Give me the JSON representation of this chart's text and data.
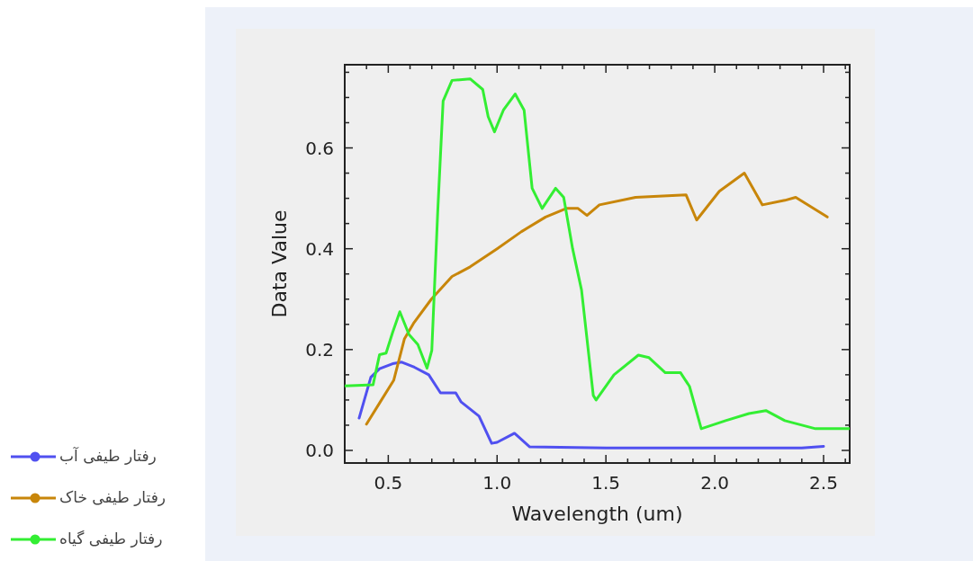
{
  "chart_data": {
    "type": "line",
    "xlabel": "Wavelength (um)",
    "ylabel": "Data Value",
    "xlim": [
      0.3,
      2.62
    ],
    "ylim": [
      -0.025,
      0.765
    ],
    "xticks": [
      {
        "value": 0.4,
        "label": null
      },
      0.5,
      {
        "value": 0.6,
        "label": null
      },
      {
        "value": 0.7,
        "label": null
      },
      {
        "value": 0.8,
        "label": null
      },
      {
        "value": 0.9,
        "label": null
      },
      {
        "value": 1.0,
        "label": "1.0"
      },
      {
        "value": 1.1,
        "label": null
      },
      {
        "value": 1.2,
        "label": null
      },
      {
        "value": 1.3,
        "label": null
      },
      {
        "value": 1.4,
        "label": null
      },
      1.5,
      {
        "value": 1.6,
        "label": null
      },
      {
        "value": 1.7,
        "label": null
      },
      {
        "value": 1.8,
        "label": null
      },
      {
        "value": 1.9,
        "label": null
      },
      {
        "value": 2.0,
        "label": "2.0"
      },
      {
        "value": 2.1,
        "label": null
      },
      {
        "value": 2.2,
        "label": null
      },
      {
        "value": 2.3,
        "label": null
      },
      {
        "value": 2.4,
        "label": null
      },
      2.5,
      {
        "value": 2.6,
        "label": null
      }
    ],
    "yticks": [
      {
        "value": 0,
        "label": "0.0"
      },
      {
        "value": 0.05,
        "label": null
      },
      {
        "value": 0.1,
        "label": null
      },
      {
        "value": 0.15,
        "label": null
      },
      0.2,
      {
        "value": 0.25,
        "label": null
      },
      {
        "value": 0.3,
        "label": null
      },
      {
        "value": 0.35,
        "label": null
      },
      0.4,
      {
        "value": 0.45,
        "label": null
      },
      {
        "value": 0.5,
        "label": null
      },
      {
        "value": 0.55,
        "label": null
      },
      0.6,
      {
        "value": 0.65,
        "label": null
      },
      {
        "value": 0.7,
        "label": null
      },
      {
        "value": 0.75,
        "label": null
      }
    ],
    "grid": false,
    "legend": "bottom left",
    "marker": "none",
    "line_style": "solid",
    "series": [
      {
        "name": "رفتار طیفی آب",
        "color": "#5050f0",
        "x": [
          0.366,
          0.42,
          0.46,
          0.52,
          0.562,
          0.62,
          0.686,
          0.74,
          0.81,
          0.835,
          0.917,
          0.975,
          1.0,
          1.08,
          1.15,
          1.5,
          2.0,
          2.4,
          2.5
        ],
        "values": [
          0.064,
          0.145,
          0.162,
          0.172,
          0.175,
          0.165,
          0.15,
          0.114,
          0.114,
          0.096,
          0.068,
          0.014,
          0.016,
          0.034,
          0.007,
          0.005,
          0.005,
          0.005,
          0.008
        ]
      },
      {
        "name": "رفتار طیفی خاک",
        "color": "#c8860a",
        "x": [
          0.4,
          0.463,
          0.525,
          0.574,
          0.616,
          0.698,
          0.793,
          0.876,
          1.0,
          1.112,
          1.223,
          1.318,
          1.372,
          1.413,
          1.47,
          1.636,
          1.868,
          1.917,
          2.021,
          2.136,
          2.219,
          2.322,
          2.372,
          2.517
        ],
        "values": [
          0.052,
          0.096,
          0.139,
          0.221,
          0.252,
          0.3,
          0.345,
          0.364,
          0.4,
          0.434,
          0.463,
          0.48,
          0.48,
          0.466,
          0.487,
          0.502,
          0.507,
          0.457,
          0.514,
          0.55,
          0.487,
          0.496,
          0.502,
          0.463
        ]
      },
      {
        "name": "رفتار طیفی گیاه",
        "color": "#33ee33",
        "x": [
          0.3,
          0.43,
          0.46,
          0.49,
          0.52,
          0.553,
          0.595,
          0.636,
          0.678,
          0.7,
          0.727,
          0.752,
          0.793,
          0.876,
          0.934,
          0.959,
          0.988,
          1.029,
          1.083,
          1.124,
          1.161,
          1.207,
          1.269,
          1.306,
          1.347,
          1.388,
          1.442,
          1.455,
          1.537,
          1.649,
          1.698,
          1.773,
          1.843,
          1.884,
          1.938,
          2.05,
          2.157,
          2.235,
          2.322,
          2.463,
          2.62
        ],
        "values": [
          0.128,
          0.13,
          0.19,
          0.193,
          0.234,
          0.275,
          0.23,
          0.21,
          0.163,
          0.198,
          0.471,
          0.693,
          0.734,
          0.737,
          0.716,
          0.662,
          0.632,
          0.675,
          0.707,
          0.675,
          0.52,
          0.48,
          0.52,
          0.502,
          0.4,
          0.318,
          0.109,
          0.1,
          0.15,
          0.189,
          0.184,
          0.154,
          0.154,
          0.127,
          0.043,
          0.059,
          0.073,
          0.079,
          0.059,
          0.043,
          0.043
        ]
      }
    ]
  }
}
